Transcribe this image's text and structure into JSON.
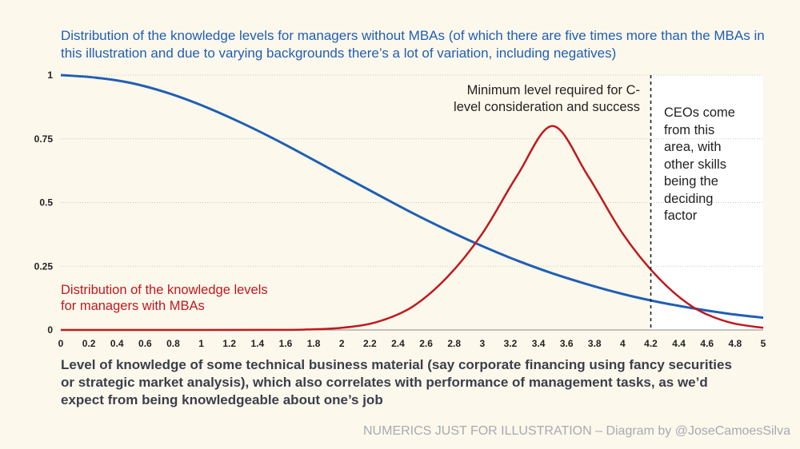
{
  "chart_data": {
    "type": "line",
    "title": "Distribution of the knowledge levels for managers without MBAs (of which there are five times more than the MBAs in this illustration and due to varying backgrounds there’s a lot of variation, including negatives)",
    "xlabel": "Level of knowledge of some technical business material (say corporate financing using fancy securities or strategic market analysis), which also correlates with performance of management tasks, as we’d expect from being knowledgeable about one’s job",
    "ylabel": "",
    "xlim": [
      0,
      5
    ],
    "ylim": [
      0,
      1
    ],
    "x_ticks": [
      "0",
      "0.2",
      "0.4",
      "0.6",
      "0.8",
      "1",
      "1.2",
      "1.4",
      "1.6",
      "1.8",
      "2",
      "2.2",
      "2.4",
      "2.6",
      "2.8",
      "3",
      "3.2",
      "3.4",
      "3.6",
      "3.8",
      "4",
      "4.2",
      "4.4",
      "4.6",
      "4.8",
      "5"
    ],
    "y_ticks": [
      "0",
      "0.25",
      "0.5",
      "0.75",
      "1"
    ],
    "grid": "horizontal dotted",
    "series": [
      {
        "name": "Distribution of the knowledge levels for managers without MBAs",
        "color": "#1f5fb4",
        "x": [
          0,
          0.25,
          0.5,
          0.75,
          1,
          1.25,
          1.5,
          1.75,
          2,
          2.25,
          2.5,
          2.75,
          3,
          3.25,
          3.5,
          3.75,
          4,
          4.25,
          4.5,
          4.75,
          5
        ],
        "y": [
          1.0,
          0.99,
          0.969,
          0.932,
          0.882,
          0.822,
          0.755,
          0.682,
          0.607,
          0.533,
          0.46,
          0.392,
          0.329,
          0.272,
          0.222,
          0.179,
          0.141,
          0.11,
          0.085,
          0.064,
          0.048
        ]
      },
      {
        "name": "Distribution of the knowledge levels for managers with MBAs",
        "color": "#c0191e",
        "x": [
          0,
          1,
          1.5,
          1.75,
          2,
          2.25,
          2.5,
          2.75,
          3,
          3.25,
          3.5,
          3.75,
          4,
          4.25,
          4.5,
          4.75,
          5
        ],
        "y": [
          0,
          0.0,
          0.0003,
          0.0018,
          0.0084,
          0.031,
          0.09,
          0.207,
          0.378,
          0.607,
          0.8,
          0.607,
          0.378,
          0.207,
          0.09,
          0.031,
          0.0084
        ]
      }
    ],
    "annotations": {
      "mba_label_line1": "Distribution of the knowledge levels",
      "mba_label_line2": "for managers with MBAs",
      "threshold_label_line1": "Minimum level required for C-",
      "threshold_label_line2": "level consideration and success",
      "threshold_x": 4.2,
      "ceo_label_lines": [
        "CEOs come",
        "from this",
        "area, with",
        "other skills",
        "being the",
        "deciding",
        "factor"
      ]
    }
  },
  "footer": "NUMERICS JUST FOR ILLUSTRATION – Diagram by @JoseCamoesSilva",
  "colors": {
    "blue": "#1f5fb4",
    "red": "#c0191e",
    "background": "#fdf8ec",
    "ceo_area": "#ffffff"
  }
}
